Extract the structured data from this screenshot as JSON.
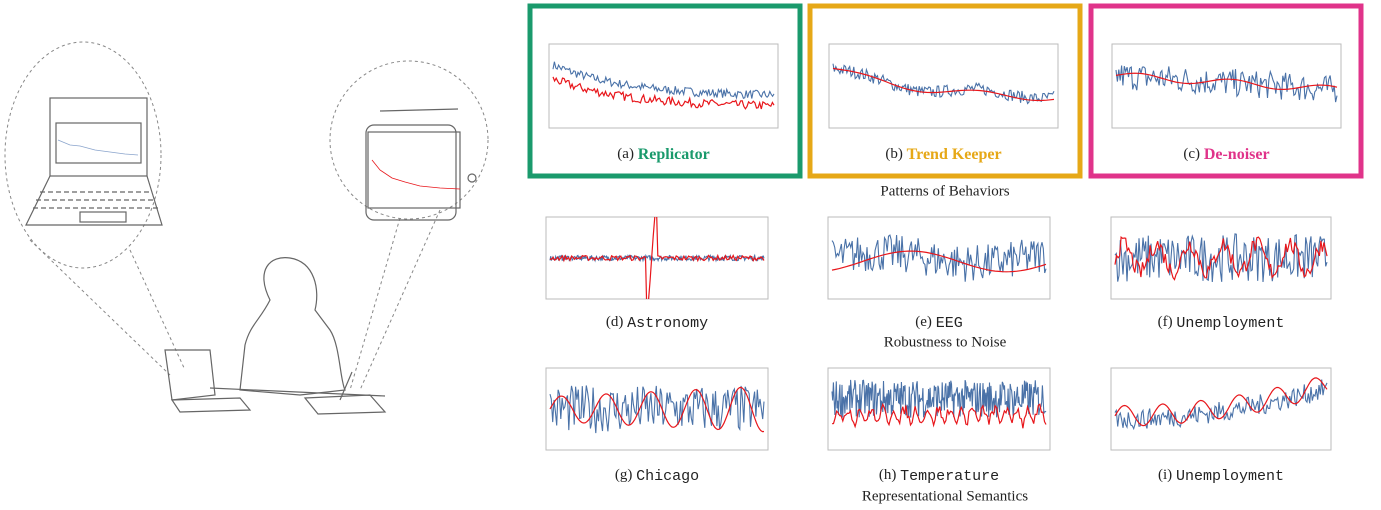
{
  "figure": {
    "panels": [
      {
        "label": "(a)",
        "name": "Replicator"
      },
      {
        "label": "(b)",
        "name": "Trend Keeper"
      },
      {
        "label": "(c)",
        "name": "De-noiser"
      },
      {
        "label": "(d)",
        "name": "Astronomy"
      },
      {
        "label": "(e)",
        "name": "EEG"
      },
      {
        "label": "(f)",
        "name": "Unemployment"
      },
      {
        "label": "(g)",
        "name": "Chicago"
      },
      {
        "label": "(h)",
        "name": "Temperature"
      },
      {
        "label": "(i)",
        "name": "Unemployment"
      }
    ],
    "groups": [
      "Patterns of Behaviors",
      "Robustness to Noise",
      "Representational Semantics"
    ]
  }
}
